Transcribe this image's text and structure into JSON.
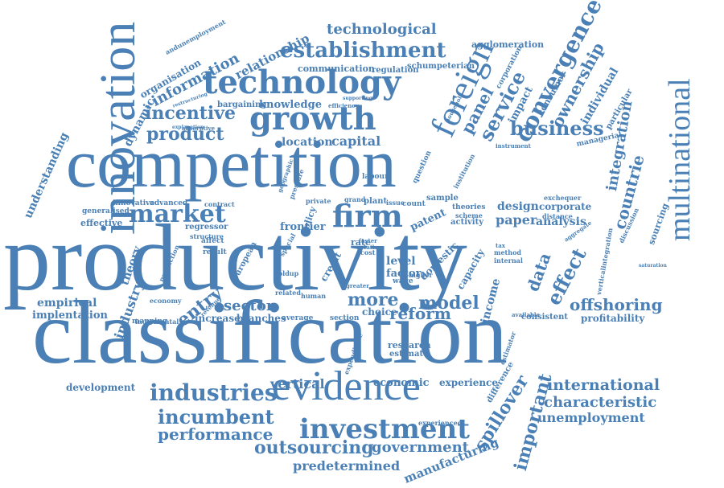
{
  "colors": {
    "word": "#4a80b5",
    "background": "#ffffff"
  },
  "words": {
    "productivity": "productivity",
    "classification": "classification",
    "competition": "competition",
    "innovation": "innovation",
    "technology": "technology",
    "growth": "growth",
    "evidence": "evidence",
    "foreign": "foreign",
    "multinational": "multinational",
    "establishment": "establishment",
    "technological": "technological",
    "market": "market",
    "firm": "firm",
    "investment": "investment",
    "industries": "industries",
    "incumbent": "incumbent",
    "performance": "performance",
    "outsourcing": "outsourcing",
    "government": "government",
    "predetermined": "predetermined",
    "manufacturing": "manufacturing",
    "spillover": "spillover",
    "important": "important",
    "international": "international",
    "characteristic": "characteristic",
    "unemployment": "unemployment",
    "offshoring": "offshoring",
    "profitability": "profitability",
    "reform": "reform",
    "model": "model",
    "more": "more",
    "sector": "sector",
    "entry": "entry",
    "industry": "industry",
    "theory": "theory",
    "empirical": "empirical",
    "implentation": "implentation",
    "understanding": "understanding",
    "dynamic": "dynamic",
    "organisation": "organisation",
    "information": "information",
    "relationship": "relationship",
    "incentive": "incentive",
    "product": "product",
    "location": "location",
    "capital": "capital",
    "knowledge": "knowledge",
    "bargaining": "bargaining",
    "communication": "communication",
    "regulation": "regulation",
    "schumpeterian": "schumpeterian",
    "agglomeration": "agglomeration",
    "convergence": "convergence",
    "service": "service",
    "panel": "panel",
    "ownership": "ownership",
    "individual": "individual",
    "business": "business",
    "integration": "integration",
    "countrie": "countrie",
    "effect": "effect",
    "data": "data",
    "paper": "paper",
    "analysis": "analysis",
    "design": "design",
    "corporate": "corporate",
    "patent": "patent",
    "level": "level",
    "factor": "factor",
    "capacity": "capacity",
    "income": "income",
    "vertical": "vertical",
    "economic": "economic",
    "experience": "experience",
    "research": "research",
    "estimate": "estimate",
    "development": "development",
    "frontier": "frontier",
    "effective": "effective",
    "generalised": "generalised",
    "innovative": "innovative",
    "advanced": "advanced",
    "increase": "increase",
    "branches": "branches",
    "average": "average",
    "section": "section",
    "choice": "choice",
    "domestic": "domestic",
    "consistent": "consistent",
    "sourcing": "sourcing",
    "particular": "particular",
    "managerial": "managerial",
    "consumer": "consumer",
    "impact": "impact",
    "corporation": "corporation",
    "sample": "sample",
    "activity": "activity",
    "theories": "theories",
    "scheme": "scheme",
    "distance": "distance",
    "exchequer": "exchequer",
    "regressor": "regressor",
    "structure": "structure",
    "policy": "policy",
    "contract": "contract",
    "plant": "plant",
    "issue": "issue",
    "count": "count",
    "rate": "rate",
    "wage": "wage",
    "higher": "higher",
    "human": "human",
    "related": "related",
    "result": "result",
    "affect": "affect",
    "european": "european",
    "holdup": "holdup",
    "special": "special",
    "credit": "credit",
    "mapping": "mapping",
    "incremental": "incremental",
    "economy": "economy",
    "revenue": "revenue",
    "production": "production",
    "expenditure": "expenditure",
    "method": "method",
    "internal": "internal",
    "labour": "labour",
    "question": "question",
    "private": "private",
    "grand": "grand",
    "pressure": "pressure",
    "geographic": "geographic",
    "cost": "cost",
    "faster": "faster",
    "retail": "retail",
    "greater": "greater",
    "absorptive": "absorptive",
    "explanation": "explanation",
    "efficiency": "efficiency",
    "supporting": "supporting",
    "restructuring": "restructuring",
    "andunemployment": "andunemployment",
    "tax": "tax",
    "verticalintegration": "verticalintegration",
    "difference": "difference",
    "experienced": "experienced",
    "discussion": "discussion",
    "instrument": "instrument",
    "household": "household",
    "institution": "institution",
    "aggregate": "aggregate",
    "estimator": "estimator",
    "available": "available",
    "saturation": "saturation"
  }
}
